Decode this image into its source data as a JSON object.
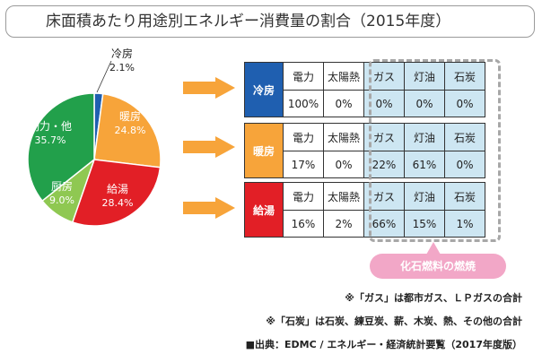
{
  "title": "床面積あたり用途別エネルギー消費量の割合（2015年度）",
  "chart_data": {
    "type": "pie",
    "slices": [
      {
        "label": "冷房",
        "value": 2.1,
        "value_label": "2.1%",
        "color": "#1f5fb0"
      },
      {
        "label": "暖房",
        "value": 24.8,
        "value_label": "24.8%",
        "color": "#f7a43a"
      },
      {
        "label": "給湯",
        "value": 28.4,
        "value_label": "28.4%",
        "color": "#e21f26"
      },
      {
        "label": "厨房",
        "value": 9.0,
        "value_label": "9.0%",
        "color": "#8fc852"
      },
      {
        "label": "動力・他",
        "value": 35.7,
        "value_label": "35.7%",
        "color": "#22a04b"
      }
    ]
  },
  "table": {
    "headers": [
      "電力",
      "太陽熱",
      "ガス",
      "灯油",
      "石炭"
    ],
    "rows": [
      {
        "category": "冷房",
        "color": "#1f5fb0",
        "values": [
          "100%",
          "0%",
          "0%",
          "0%",
          "0%"
        ]
      },
      {
        "category": "暖房",
        "color": "#f7a43a",
        "values": [
          "17%",
          "0%",
          "22%",
          "61%",
          "0%"
        ]
      },
      {
        "category": "給湯",
        "color": "#e21f26",
        "values": [
          "16%",
          "2%",
          "66%",
          "15%",
          "1%"
        ]
      }
    ]
  },
  "callout": "化石燃料の燃焼",
  "notes": [
    "※「ガス」は都市ガス、ＬＰガスの合計",
    "※「石炭」は石炭、練豆炭、薪、木炭、熱、その他の合計",
    "■出典：EDMC / エネルギー・経済統計要覧（2017年度版）"
  ],
  "colors": {
    "arrow": "#f7a43a",
    "fossil_fill": "#cde6f2",
    "callout": "#f2a7c7"
  }
}
